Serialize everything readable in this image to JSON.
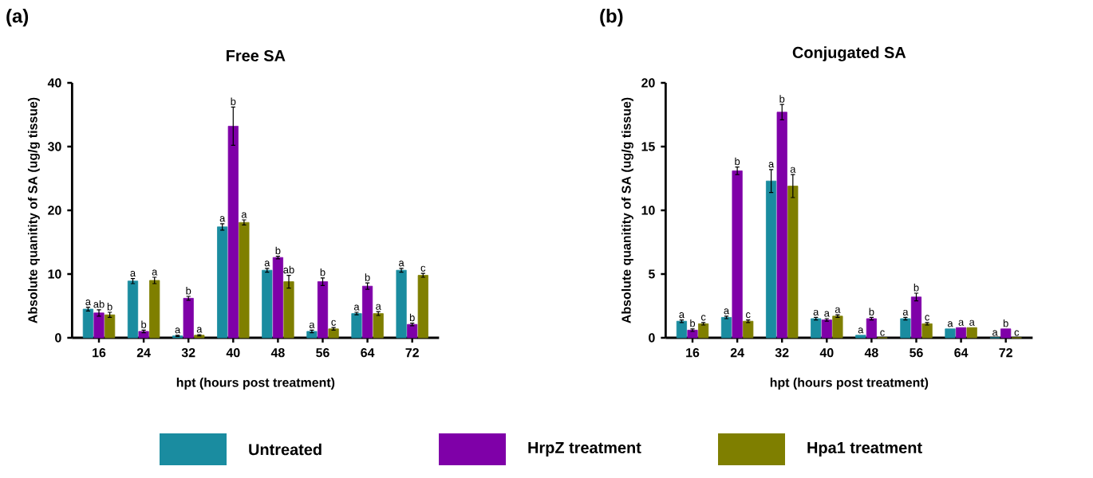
{
  "chart_data": [
    {
      "type": "bar",
      "title": "Free SA",
      "xlabel": "hpt (hours post treatment)",
      "ylabel": "Absolute quanitity of SA (ug/g tissue)",
      "annotations": [
        "(a)"
      ],
      "categories": [
        "16",
        "24",
        "32",
        "40",
        "48",
        "56",
        "64",
        "72"
      ],
      "ylim": [
        0,
        40
      ],
      "yticks": [
        0,
        10,
        20,
        30,
        40
      ],
      "legend": "bottom",
      "series": [
        {
          "name": "Untreated",
          "color": "#1a8ca0",
          "values": [
            4.5,
            8.9,
            0.3,
            17.4,
            10.6,
            1.0,
            3.8,
            10.6
          ],
          "errors": [
            0.3,
            0.4,
            0.1,
            0.5,
            0.3,
            0.2,
            0.2,
            0.3
          ],
          "value_labels": [
            "a",
            "a",
            "a",
            "a",
            "a",
            "a",
            "a",
            "a"
          ]
        },
        {
          "name": "HrpZ treatment",
          "color": "#7f00a8",
          "values": [
            3.9,
            1.0,
            6.2,
            33.2,
            12.6,
            8.8,
            8.1,
            2.1
          ],
          "errors": [
            0.5,
            0.2,
            0.3,
            3.0,
            0.2,
            0.6,
            0.5,
            0.2
          ],
          "value_labels": [
            "ab",
            "b",
            "b",
            "b",
            "b",
            "b",
            "b",
            "b"
          ]
        },
        {
          "name": "Hpa1 treatment",
          "color": "#7f7f00",
          "values": [
            3.6,
            9.0,
            0.4,
            18.1,
            8.8,
            1.4,
            3.8,
            9.8
          ],
          "errors": [
            0.4,
            0.5,
            0.1,
            0.4,
            1.0,
            0.2,
            0.3,
            0.3
          ],
          "value_labels": [
            "b",
            "a",
            "a",
            "a",
            "ab",
            "c",
            "a",
            "c"
          ]
        }
      ]
    },
    {
      "type": "bar",
      "title": "Conjugated SA",
      "xlabel": "hpt (hours post treatment)",
      "ylabel": "Absolute quanitity of SA (ug/g tissue)",
      "annotations": [
        "(b)"
      ],
      "categories": [
        "16",
        "24",
        "32",
        "40",
        "48",
        "56",
        "64",
        "72"
      ],
      "ylim": [
        0,
        20
      ],
      "yticks": [
        0,
        5,
        10,
        15,
        20
      ],
      "series": [
        {
          "color": "#1a8ca0",
          "values": [
            1.3,
            1.6,
            12.3,
            1.5,
            0.2,
            1.5,
            0.7,
            0.0
          ],
          "errors": [
            0.1,
            0.1,
            0.9,
            0.1,
            null,
            0.1,
            null,
            null
          ],
          "value_labels": [
            "a",
            "a",
            "a",
            "a",
            "a",
            "a",
            "a",
            "a"
          ]
        },
        {
          "color": "#7f00a8",
          "values": [
            0.6,
            13.1,
            17.7,
            1.4,
            1.5,
            3.2,
            0.8,
            0.7
          ],
          "errors": [
            0.1,
            0.3,
            0.6,
            0.1,
            0.1,
            0.3,
            null,
            null
          ],
          "value_labels": [
            "b",
            "b",
            "b",
            "a",
            "b",
            "b",
            "a",
            "b"
          ]
        },
        {
          "color": "#7f7f00",
          "values": [
            1.1,
            1.3,
            11.9,
            1.7,
            0.0,
            1.1,
            0.8,
            0.0
          ],
          "errors": [
            0.1,
            0.1,
            0.9,
            0.1,
            null,
            0.1,
            null,
            null
          ],
          "value_labels": [
            "c",
            "c",
            "a",
            "a",
            "c",
            "c",
            "a",
            "c"
          ]
        }
      ]
    }
  ]
}
